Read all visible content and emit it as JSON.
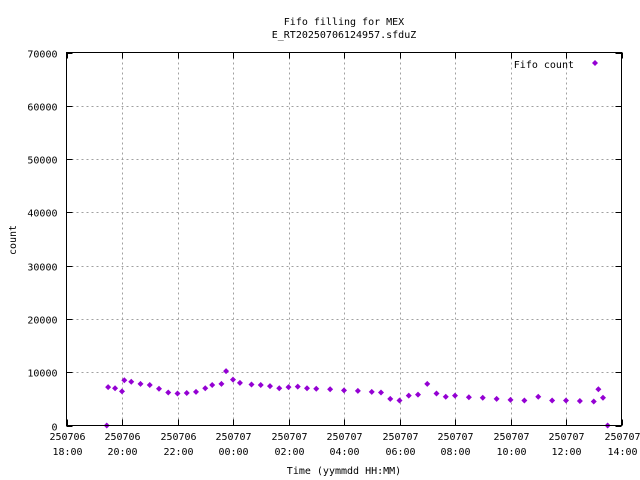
{
  "chart_data": {
    "type": "scatter",
    "title": "Fifo filling for MEX",
    "subtitle": "E_RT20250706124957.sfduZ",
    "xlabel": "Time (yymmdd HH:MM)",
    "ylabel": "count",
    "xlim": [
      "2025-07-06 18:00",
      "2025-07-07 14:00"
    ],
    "ylim": [
      0,
      70000
    ],
    "x_ticks": [
      {
        "date": "250706",
        "time": "18:00"
      },
      {
        "date": "250706",
        "time": "20:00"
      },
      {
        "date": "250706",
        "time": "22:00"
      },
      {
        "date": "250707",
        "time": "00:00"
      },
      {
        "date": "250707",
        "time": "02:00"
      },
      {
        "date": "250707",
        "time": "04:00"
      },
      {
        "date": "250707",
        "time": "06:00"
      },
      {
        "date": "250707",
        "time": "08:00"
      },
      {
        "date": "250707",
        "time": "10:00"
      },
      {
        "date": "250707",
        "time": "12:00"
      },
      {
        "date": "250707",
        "time": "14:00"
      }
    ],
    "y_ticks": [
      "0",
      "10000",
      "20000",
      "30000",
      "40000",
      "50000",
      "60000",
      "70000"
    ],
    "grid": true,
    "legend_position": "top-right",
    "series": [
      {
        "name": "Fifo count",
        "color": "#9400d3",
        "marker": "diamond",
        "points": [
          [
            "2025-07-06 19:27",
            0
          ],
          [
            "2025-07-06 19:30",
            7200
          ],
          [
            "2025-07-06 19:45",
            7000
          ],
          [
            "2025-07-06 20:00",
            6400
          ],
          [
            "2025-07-06 20:05",
            8500
          ],
          [
            "2025-07-06 20:20",
            8200
          ],
          [
            "2025-07-06 20:40",
            7800
          ],
          [
            "2025-07-06 21:00",
            7600
          ],
          [
            "2025-07-06 21:20",
            6900
          ],
          [
            "2025-07-06 21:40",
            6200
          ],
          [
            "2025-07-06 22:00",
            6000
          ],
          [
            "2025-07-06 22:20",
            6100
          ],
          [
            "2025-07-06 22:40",
            6300
          ],
          [
            "2025-07-06 23:00",
            7000
          ],
          [
            "2025-07-06 23:15",
            7600
          ],
          [
            "2025-07-06 23:35",
            7800
          ],
          [
            "2025-07-06 23:45",
            10200
          ],
          [
            "2025-07-07 00:00",
            8600
          ],
          [
            "2025-07-07 00:15",
            8000
          ],
          [
            "2025-07-07 00:40",
            7700
          ],
          [
            "2025-07-07 01:00",
            7600
          ],
          [
            "2025-07-07 01:20",
            7400
          ],
          [
            "2025-07-07 01:40",
            7000
          ],
          [
            "2025-07-07 02:00",
            7200
          ],
          [
            "2025-07-07 02:20",
            7300
          ],
          [
            "2025-07-07 02:40",
            7000
          ],
          [
            "2025-07-07 03:00",
            6900
          ],
          [
            "2025-07-07 03:30",
            6800
          ],
          [
            "2025-07-07 04:00",
            6600
          ],
          [
            "2025-07-07 04:30",
            6500
          ],
          [
            "2025-07-07 05:00",
            6300
          ],
          [
            "2025-07-07 05:20",
            6200
          ],
          [
            "2025-07-07 05:40",
            5000
          ],
          [
            "2025-07-07 06:00",
            4700
          ],
          [
            "2025-07-07 06:20",
            5600
          ],
          [
            "2025-07-07 06:40",
            5800
          ],
          [
            "2025-07-07 07:00",
            7800
          ],
          [
            "2025-07-07 07:20",
            6000
          ],
          [
            "2025-07-07 07:40",
            5400
          ],
          [
            "2025-07-07 08:00",
            5600
          ],
          [
            "2025-07-07 08:30",
            5300
          ],
          [
            "2025-07-07 09:00",
            5200
          ],
          [
            "2025-07-07 09:30",
            5000
          ],
          [
            "2025-07-07 10:00",
            4800
          ],
          [
            "2025-07-07 10:30",
            4700
          ],
          [
            "2025-07-07 11:00",
            5400
          ],
          [
            "2025-07-07 11:30",
            4700
          ],
          [
            "2025-07-07 12:00",
            4700
          ],
          [
            "2025-07-07 12:30",
            4600
          ],
          [
            "2025-07-07 13:00",
            4500
          ],
          [
            "2025-07-07 13:10",
            6800
          ],
          [
            "2025-07-07 13:20",
            5200
          ],
          [
            "2025-07-07 13:30",
            0
          ]
        ]
      }
    ]
  }
}
